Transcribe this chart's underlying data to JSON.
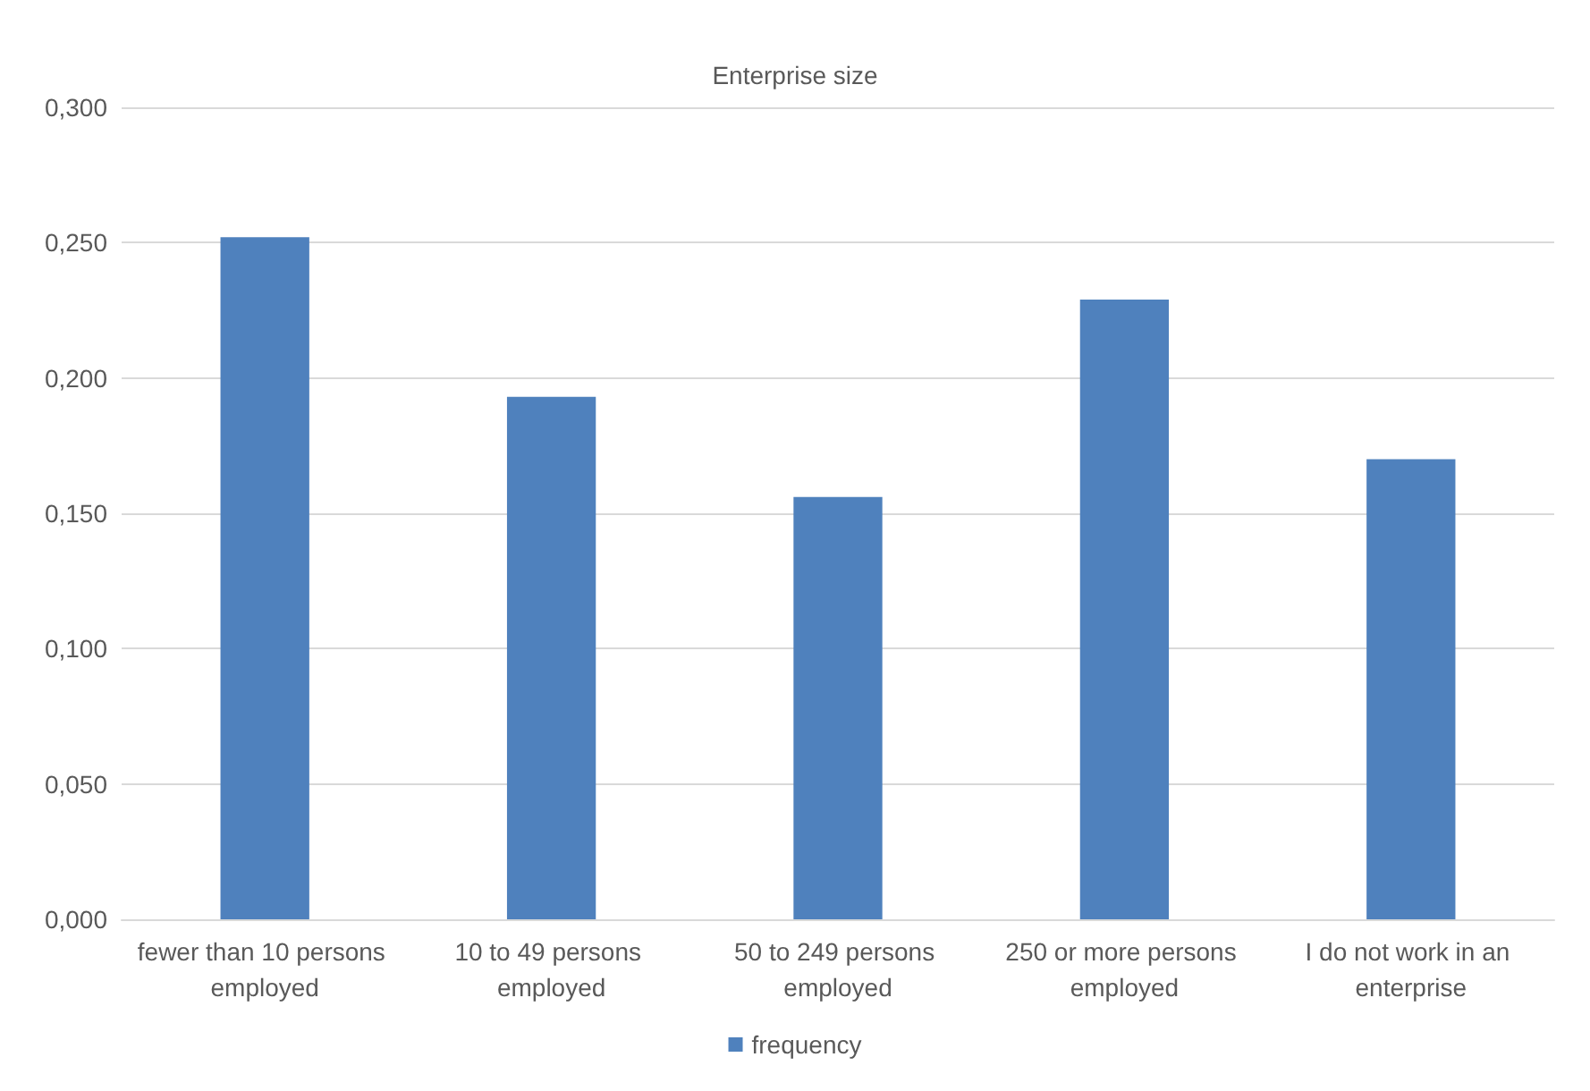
{
  "chart_data": {
    "type": "bar",
    "title": "Enterprise size",
    "categories": [
      "fewer than 10 persons employed",
      "10 to 49 persons employed",
      "50 to 249 persons employed",
      "250 or more persons employed",
      "I do not work in an enterprise"
    ],
    "series": [
      {
        "name": "frequency",
        "color": "#4f81bd",
        "values": [
          0.252,
          0.193,
          0.156,
          0.229,
          0.17
        ]
      }
    ],
    "ylim": [
      0,
      0.3
    ],
    "yticks": [
      {
        "value": 0,
        "label": "0,000"
      },
      {
        "value": 0.05,
        "label": "0,050"
      },
      {
        "value": 0.1,
        "label": "0,100"
      },
      {
        "value": 0.15,
        "label": "0,150"
      },
      {
        "value": 0.2,
        "label": "0,200"
      },
      {
        "value": 0.25,
        "label": "0,250"
      },
      {
        "value": 0.3,
        "label": "0,300"
      }
    ],
    "grid": "y",
    "legend": "bottom"
  }
}
